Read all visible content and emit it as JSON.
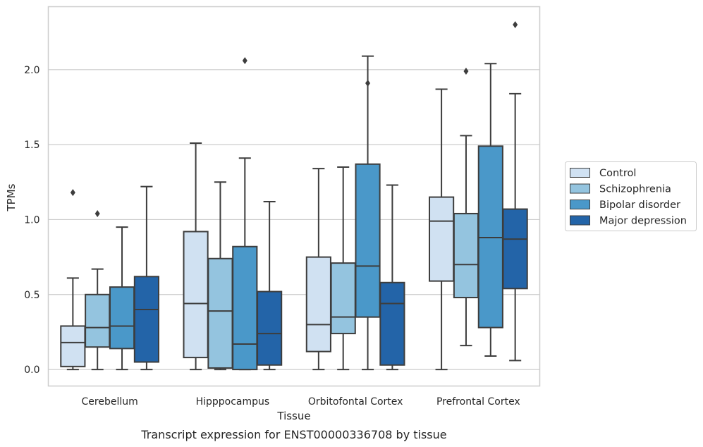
{
  "chart_data": {
    "type": "box",
    "caption": "Transcript expression for ENST00000336708 by tissue",
    "xlabel": "Tissue",
    "ylabel": "TPMs",
    "ylim": [
      -0.11,
      2.42
    ],
    "yticks": [
      0.0,
      0.5,
      1.0,
      1.5,
      2.0
    ],
    "ytick_labels": [
      "0.0",
      "0.5",
      "1.0",
      "1.5",
      "2.0"
    ],
    "grid": "horizontal",
    "legend_position": "right",
    "categories": [
      "Cerebellum",
      "Hipppocampus",
      "Orbitofontal Cortex",
      "Prefrontal Cortex"
    ],
    "series": [
      {
        "name": "Control",
        "color": "#d0e1f2",
        "boxes": [
          {
            "whislo": 0.0,
            "q1": 0.02,
            "med": 0.18,
            "q3": 0.29,
            "whishi": 0.61,
            "fliers": [
              1.18
            ]
          },
          {
            "whislo": 0.0,
            "q1": 0.08,
            "med": 0.44,
            "q3": 0.92,
            "whishi": 1.51,
            "fliers": []
          },
          {
            "whislo": 0.0,
            "q1": 0.12,
            "med": 0.3,
            "q3": 0.75,
            "whishi": 1.34,
            "fliers": []
          },
          {
            "whislo": 0.0,
            "q1": 0.59,
            "med": 0.99,
            "q3": 1.15,
            "whishi": 1.87,
            "fliers": []
          }
        ]
      },
      {
        "name": "Schizophrenia",
        "color": "#94c4df",
        "boxes": [
          {
            "whislo": 0.0,
            "q1": 0.15,
            "med": 0.28,
            "q3": 0.5,
            "whishi": 0.67,
            "fliers": [
              1.04
            ]
          },
          {
            "whislo": 0.0,
            "q1": 0.01,
            "med": 0.39,
            "q3": 0.74,
            "whishi": 1.25,
            "fliers": []
          },
          {
            "whislo": 0.0,
            "q1": 0.24,
            "med": 0.35,
            "q3": 0.71,
            "whishi": 1.35,
            "fliers": []
          },
          {
            "whislo": 0.16,
            "q1": 0.48,
            "med": 0.7,
            "q3": 1.04,
            "whishi": 1.56,
            "fliers": [
              1.99
            ]
          }
        ]
      },
      {
        "name": "Bipolar disorder",
        "color": "#4a98c9",
        "boxes": [
          {
            "whislo": 0.0,
            "q1": 0.14,
            "med": 0.29,
            "q3": 0.55,
            "whishi": 0.95,
            "fliers": []
          },
          {
            "whislo": 0.0,
            "q1": 0.0,
            "med": 0.17,
            "q3": 0.82,
            "whishi": 1.41,
            "fliers": [
              2.06
            ]
          },
          {
            "whislo": 0.0,
            "q1": 0.35,
            "med": 0.69,
            "q3": 1.37,
            "whishi": 2.09,
            "fliers": [
              1.91
            ]
          },
          {
            "whislo": 0.09,
            "q1": 0.28,
            "med": 0.88,
            "q3": 1.49,
            "whishi": 2.04,
            "fliers": []
          }
        ]
      },
      {
        "name": "Major depression",
        "color": "#2364a8",
        "boxes": [
          {
            "whislo": 0.0,
            "q1": 0.05,
            "med": 0.4,
            "q3": 0.62,
            "whishi": 1.22,
            "fliers": []
          },
          {
            "whislo": 0.0,
            "q1": 0.03,
            "med": 0.24,
            "q3": 0.52,
            "whishi": 1.12,
            "fliers": []
          },
          {
            "whislo": 0.0,
            "q1": 0.03,
            "med": 0.44,
            "q3": 0.58,
            "whishi": 1.23,
            "fliers": []
          },
          {
            "whislo": 0.06,
            "q1": 0.54,
            "med": 0.87,
            "q3": 1.07,
            "whishi": 1.84,
            "fliers": [
              2.3
            ]
          }
        ]
      }
    ]
  }
}
